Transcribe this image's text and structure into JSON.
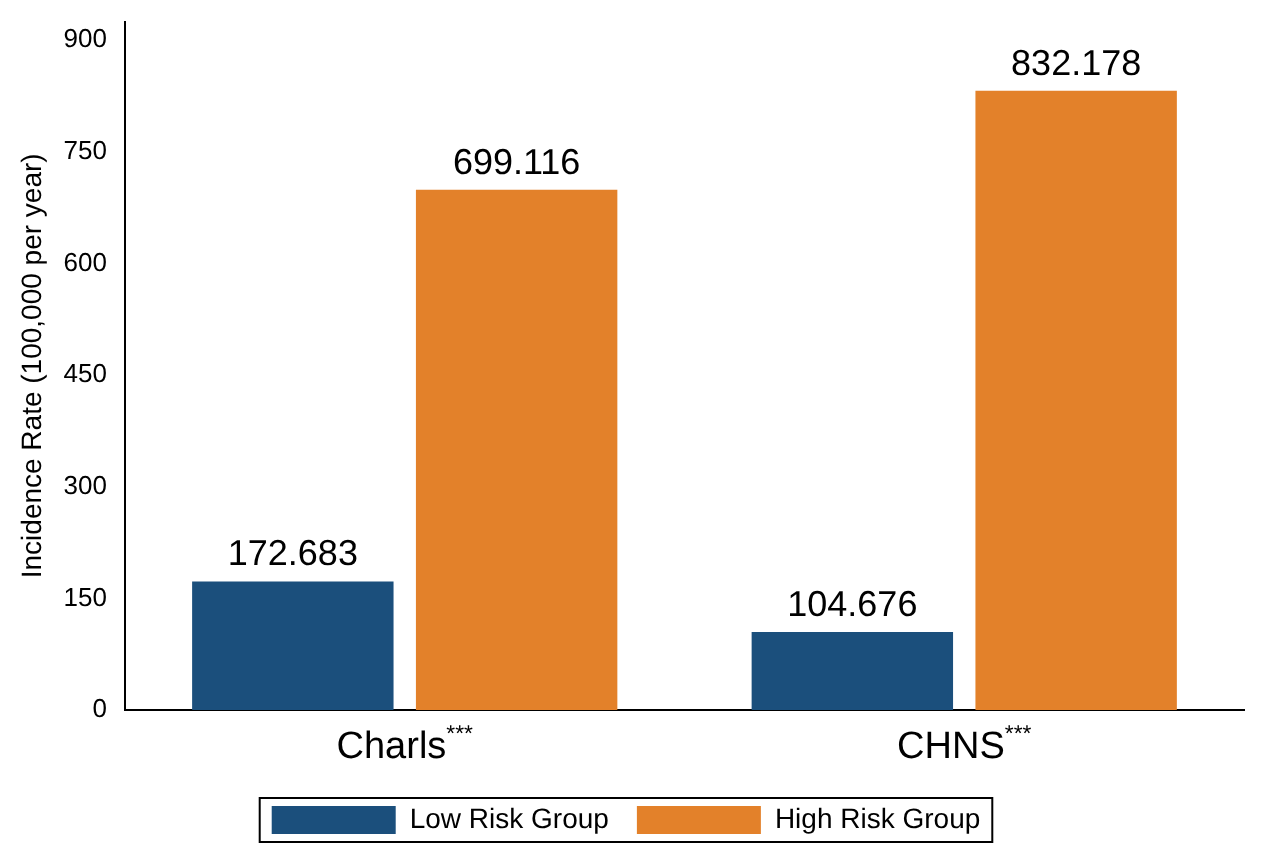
{
  "chart_data": {
    "type": "bar",
    "ylabel": "Incidence Rate (100,000 per year)",
    "categories": [
      "Charls$^{***}$",
      "CHNS$^{***}$"
    ],
    "series": [
      {
        "name": "Low Risk Group",
        "color": "#1b4f7c",
        "values": [
          172.683,
          104.676
        ]
      },
      {
        "name": "High Risk Group",
        "color": "#e3812a",
        "values": [
          699.116,
          832.178
        ]
      }
    ],
    "ylim": [
      0,
      925
    ],
    "yticks": [
      0,
      150,
      300,
      450,
      600,
      750,
      900
    ],
    "grid": false,
    "legend": "bottom",
    "data_labels": true
  }
}
